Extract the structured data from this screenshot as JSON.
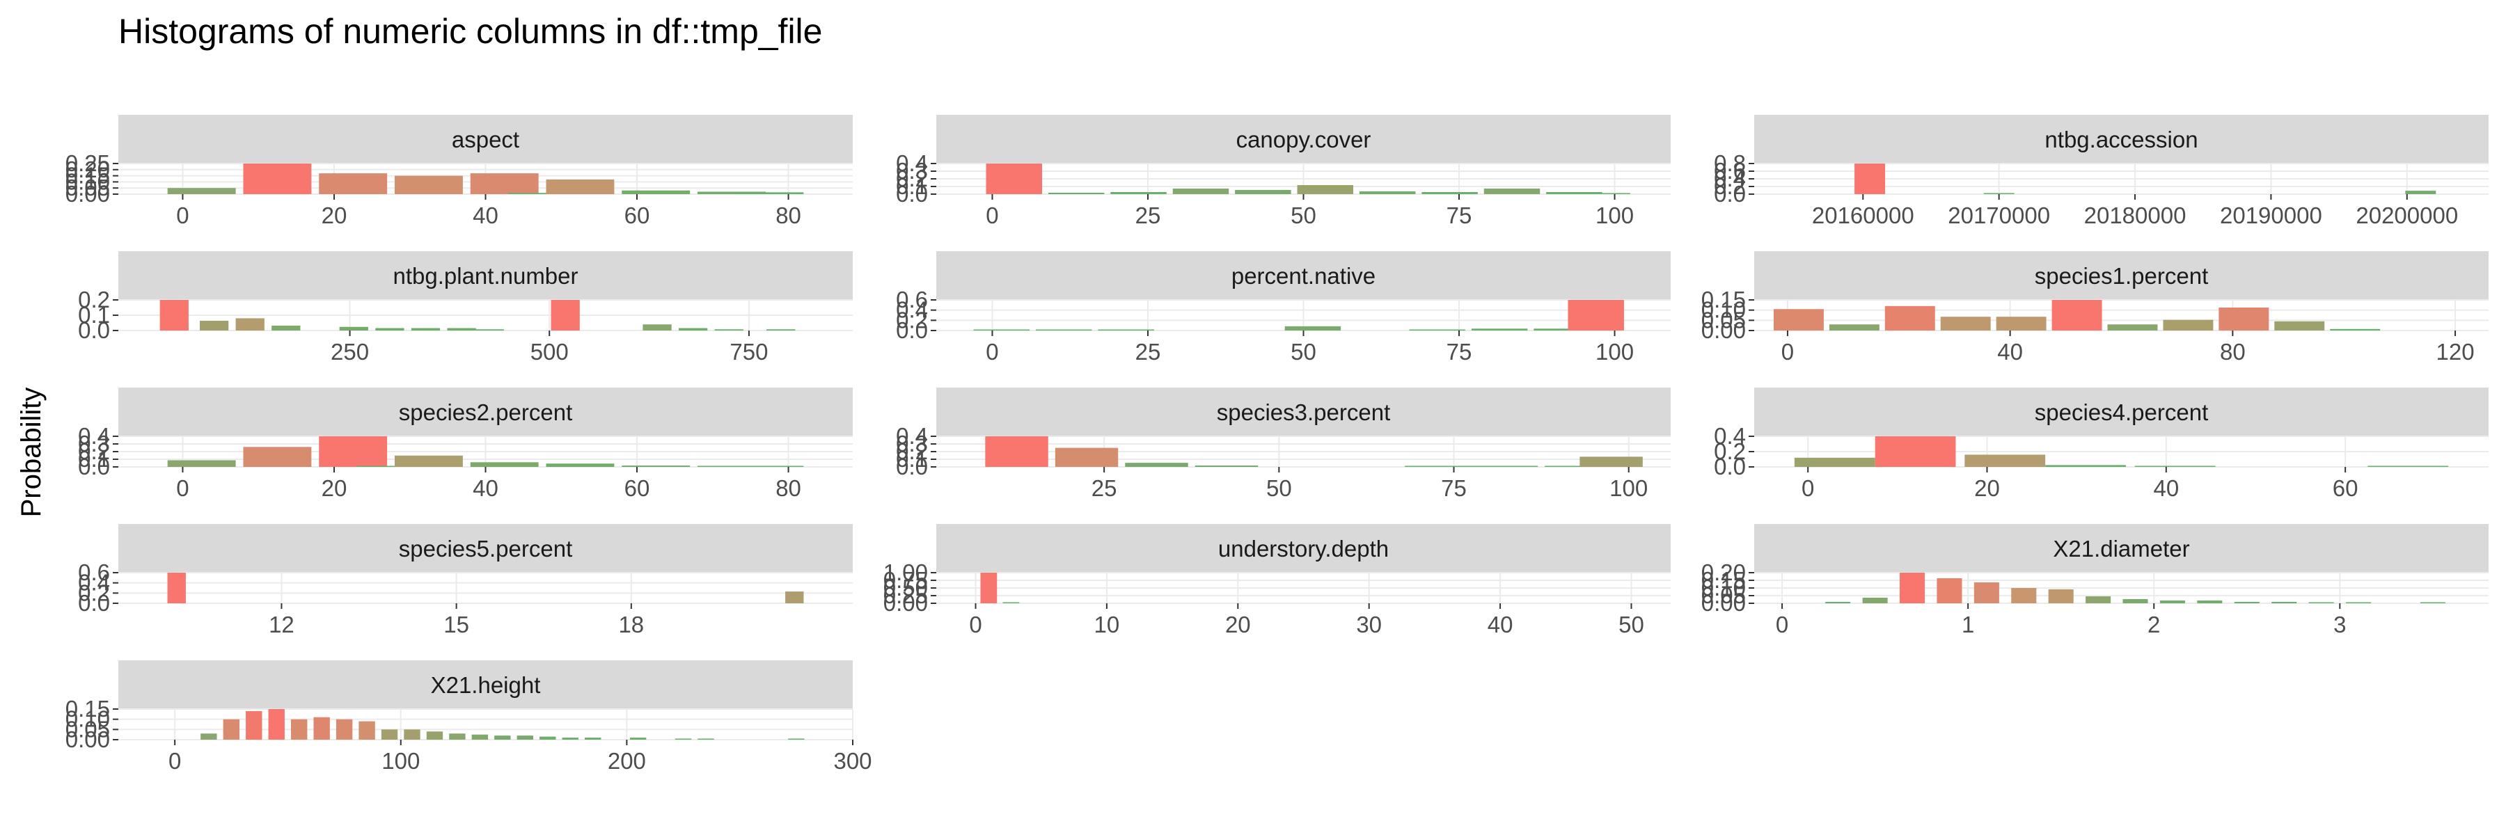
{
  "chart_data": {
    "type": "bar",
    "title": "Histograms of numeric columns in df::tmp_file",
    "ylabel": "Probability",
    "xlabel": "",
    "grid": true,
    "legend": "none",
    "colors": {
      "low": "#5bb36a",
      "mid": "#c9966e",
      "high": "#f8766d",
      "strip": "#d9d9d9",
      "grid": "#ebebeb",
      "tick": "#4d4d4d"
    },
    "panels": [
      {
        "name": "aspect",
        "xlim": [
          -8.5,
          88.5
        ],
        "ymax": 0.25,
        "ytick_labels": [
          "0.00",
          "0.05",
          "0.10",
          "0.15",
          "0.20",
          "0.25"
        ],
        "xticks": [
          0,
          20,
          40,
          60,
          80
        ],
        "xtick_labels": [
          "0",
          "20",
          "40",
          "60",
          "80"
        ],
        "binwidth": 10,
        "bins": [
          [
            2.5,
            0.05
          ],
          [
            12.5,
            0.25
          ],
          [
            22.5,
            0.17
          ],
          [
            32.5,
            0.15
          ],
          [
            42.5,
            0.17
          ],
          [
            47.5,
            0.01
          ],
          [
            52.5,
            0.12
          ],
          [
            62.5,
            0.03
          ],
          [
            72.5,
            0.02
          ],
          [
            77.5,
            0.015
          ]
        ]
      },
      {
        "name": "canopy.cover",
        "xlim": [
          -9,
          109
        ],
        "ymax": 0.44,
        "ytick_labels": [
          "0.0",
          "0.1",
          "0.2",
          "0.3",
          "0.4"
        ],
        "xticks": [
          0,
          25,
          50,
          75,
          100
        ],
        "xtick_labels": [
          "0",
          "25",
          "50",
          "75",
          "100"
        ],
        "binwidth": 10,
        "bins": [
          [
            3.5,
            0.44
          ],
          [
            13.5,
            0.02
          ],
          [
            23.5,
            0.03
          ],
          [
            33.5,
            0.08
          ],
          [
            43.5,
            0.06
          ],
          [
            53.5,
            0.13
          ],
          [
            63.5,
            0.04
          ],
          [
            73.5,
            0.03
          ],
          [
            83.5,
            0.08
          ],
          [
            93.5,
            0.03
          ],
          [
            98,
            0.01
          ]
        ]
      },
      {
        "name": "ntbg.accession",
        "xlim": [
          20152000,
          20206000
        ],
        "ymax": 0.9,
        "ytick_labels": [
          "0.0",
          "0.2",
          "0.4",
          "0.6",
          "0.8"
        ],
        "xticks": [
          20160000,
          20170000,
          20180000,
          20190000,
          20200000
        ],
        "xtick_labels": [
          "20160000",
          "20170000",
          "20180000",
          "20190000",
          "20200000"
        ],
        "binwidth": 2500,
        "bins": [
          [
            20160500,
            0.9
          ],
          [
            20170000,
            0.02
          ],
          [
            20201000,
            0.1
          ]
        ]
      },
      {
        "name": "ntbg.plant.number",
        "xlim": [
          -40,
          880
        ],
        "ymax": 0.25,
        "ytick_labels": [
          "0.0",
          "0.1",
          "0.2"
        ],
        "xticks": [
          250,
          500,
          750
        ],
        "xtick_labels": [
          "250",
          "500",
          "750"
        ],
        "binwidth": 40,
        "bins": [
          [
            30,
            0.25
          ],
          [
            80,
            0.08
          ],
          [
            125,
            0.1
          ],
          [
            170,
            0.04
          ],
          [
            255,
            0.03
          ],
          [
            300,
            0.02
          ],
          [
            345,
            0.02
          ],
          [
            390,
            0.02
          ],
          [
            425,
            0.01
          ],
          [
            520,
            0.25
          ],
          [
            635,
            0.05
          ],
          [
            680,
            0.02
          ],
          [
            725,
            0.01
          ],
          [
            790,
            0.01
          ]
        ]
      },
      {
        "name": "percent.native",
        "xlim": [
          -9,
          109
        ],
        "ymax": 0.65,
        "ytick_labels": [
          "0.0",
          "0.2",
          "0.4",
          "0.6"
        ],
        "xticks": [
          0,
          25,
          50,
          75,
          100
        ],
        "xtick_labels": [
          "0",
          "25",
          "50",
          "75",
          "100"
        ],
        "binwidth": 10,
        "bins": [
          [
            1.5,
            0.02
          ],
          [
            11.5,
            0.01
          ],
          [
            21.5,
            0.02
          ],
          [
            51.5,
            0.09
          ],
          [
            71.5,
            0.02
          ],
          [
            81.5,
            0.04
          ],
          [
            91.5,
            0.04
          ],
          [
            97,
            0.65
          ]
        ]
      },
      {
        "name": "species1.percent",
        "xlim": [
          -6,
          126
        ],
        "ymax": 0.2,
        "ytick_labels": [
          "0.00",
          "0.05",
          "0.10",
          "0.15"
        ],
        "xticks": [
          0,
          40,
          80,
          120
        ],
        "xtick_labels": [
          "0",
          "40",
          "80",
          "120"
        ],
        "binwidth": 10,
        "bins": [
          [
            2,
            0.14
          ],
          [
            12,
            0.04
          ],
          [
            22,
            0.16
          ],
          [
            32,
            0.09
          ],
          [
            42,
            0.09
          ],
          [
            52,
            0.2
          ],
          [
            62,
            0.04
          ],
          [
            72,
            0.07
          ],
          [
            82,
            0.15
          ],
          [
            92,
            0.06
          ],
          [
            102,
            0.01
          ]
        ]
      },
      {
        "name": "species2.percent",
        "xlim": [
          -8.5,
          88.5
        ],
        "ymax": 0.46,
        "ytick_labels": [
          "0.0",
          "0.1",
          "0.2",
          "0.3",
          "0.4"
        ],
        "xticks": [
          0,
          20,
          40,
          60,
          80
        ],
        "xtick_labels": [
          "0",
          "20",
          "40",
          "60",
          "80"
        ],
        "binwidth": 10,
        "bins": [
          [
            2.5,
            0.1
          ],
          [
            12.5,
            0.3
          ],
          [
            22.5,
            0.46
          ],
          [
            27.5,
            0.01
          ],
          [
            32.5,
            0.17
          ],
          [
            42.5,
            0.07
          ],
          [
            52.5,
            0.05
          ],
          [
            62.5,
            0.02
          ],
          [
            72.5,
            0.01
          ],
          [
            77.5,
            0.01
          ]
        ]
      },
      {
        "name": "species3.percent",
        "xlim": [
          1,
          106
        ],
        "ymax": 0.45,
        "ytick_labels": [
          "0.0",
          "0.1",
          "0.2",
          "0.3",
          "0.4"
        ],
        "xticks": [
          25,
          50,
          75,
          100
        ],
        "xtick_labels": [
          "25",
          "50",
          "75",
          "100"
        ],
        "binwidth": 10,
        "bins": [
          [
            12.5,
            0.45
          ],
          [
            22.5,
            0.28
          ],
          [
            32.5,
            0.06
          ],
          [
            42.5,
            0.02
          ],
          [
            72.5,
            0.01
          ],
          [
            77.5,
            0.01
          ],
          [
            82.5,
            0.01
          ],
          [
            92.5,
            0.01
          ],
          [
            97.5,
            0.15
          ]
        ]
      },
      {
        "name": "species4.percent",
        "xlim": [
          -6,
          76
        ],
        "ymax": 0.5,
        "ytick_labels": [
          "0.0",
          "0.2",
          "0.4"
        ],
        "xticks": [
          0,
          20,
          40,
          60
        ],
        "xtick_labels": [
          "0",
          "20",
          "40",
          "60"
        ],
        "binwidth": 10,
        "bins": [
          [
            3,
            0.15
          ],
          [
            12,
            0.5
          ],
          [
            22,
            0.2
          ],
          [
            31,
            0.03
          ],
          [
            41,
            0.01
          ],
          [
            67,
            0.01
          ]
        ]
      },
      {
        "name": "species5.percent",
        "xlim": [
          9.2,
          21.8
        ],
        "ymax": 0.65,
        "ytick_labels": [
          "0.0",
          "0.2",
          "0.4",
          "0.6"
        ],
        "xticks": [
          12,
          15,
          18
        ],
        "xtick_labels": [
          "12",
          "15",
          "18"
        ],
        "binwidth": 0.35,
        "bins": [
          [
            10.2,
            0.65
          ],
          [
            20.8,
            0.25
          ]
        ]
      },
      {
        "name": "understory.depth",
        "xlim": [
          -3,
          53
        ],
        "ymax": 1.0,
        "ytick_labels": [
          "0.00",
          "0.25",
          "0.50",
          "0.75",
          "1.00"
        ],
        "xticks": [
          0,
          10,
          20,
          30,
          40,
          50
        ],
        "xtick_labels": [
          "0",
          "10",
          "20",
          "30",
          "40",
          "50"
        ],
        "binwidth": 1.4,
        "bins": [
          [
            1,
            1.0
          ],
          [
            2.7,
            0.02
          ]
        ]
      },
      {
        "name": "X21.diameter",
        "xlim": [
          -0.15,
          3.8
        ],
        "ymax": 0.22,
        "ytick_labels": [
          "0.00",
          "0.05",
          "0.10",
          "0.15",
          "0.20"
        ],
        "xticks": [
          0,
          1,
          2,
          3
        ],
        "xtick_labels": [
          "0",
          "1",
          "2",
          "3"
        ],
        "binwidth": 0.15,
        "bins": [
          [
            0.3,
            0.01
          ],
          [
            0.5,
            0.04
          ],
          [
            0.7,
            0.22
          ],
          [
            0.9,
            0.18
          ],
          [
            1.1,
            0.15
          ],
          [
            1.3,
            0.11
          ],
          [
            1.5,
            0.1
          ],
          [
            1.7,
            0.05
          ],
          [
            1.9,
            0.03
          ],
          [
            2.1,
            0.02
          ],
          [
            2.3,
            0.02
          ],
          [
            2.5,
            0.01
          ],
          [
            2.7,
            0.01
          ],
          [
            2.9,
            0.005
          ],
          [
            3.1,
            0.005
          ],
          [
            3.5,
            0.005
          ]
        ]
      },
      {
        "name": "X21.height",
        "xlim": [
          -25,
          300
        ],
        "ymax": 0.15,
        "ytick_labels": [
          "0.00",
          "0.05",
          "0.10",
          "0.15"
        ],
        "xticks": [
          0,
          100,
          200,
          300
        ],
        "xtick_labels": [
          "0",
          "100",
          "200",
          "300"
        ],
        "binwidth": 8,
        "bins": [
          [
            15,
            0.03
          ],
          [
            25,
            0.1
          ],
          [
            35,
            0.14
          ],
          [
            45,
            0.15
          ],
          [
            55,
            0.1
          ],
          [
            65,
            0.11
          ],
          [
            75,
            0.1
          ],
          [
            85,
            0.09
          ],
          [
            95,
            0.05
          ],
          [
            105,
            0.05
          ],
          [
            115,
            0.04
          ],
          [
            125,
            0.03
          ],
          [
            135,
            0.025
          ],
          [
            145,
            0.02
          ],
          [
            155,
            0.02
          ],
          [
            165,
            0.015
          ],
          [
            175,
            0.01
          ],
          [
            185,
            0.01
          ],
          [
            205,
            0.01
          ],
          [
            225,
            0.005
          ],
          [
            235,
            0.005
          ],
          [
            275,
            0.005
          ]
        ]
      }
    ]
  }
}
